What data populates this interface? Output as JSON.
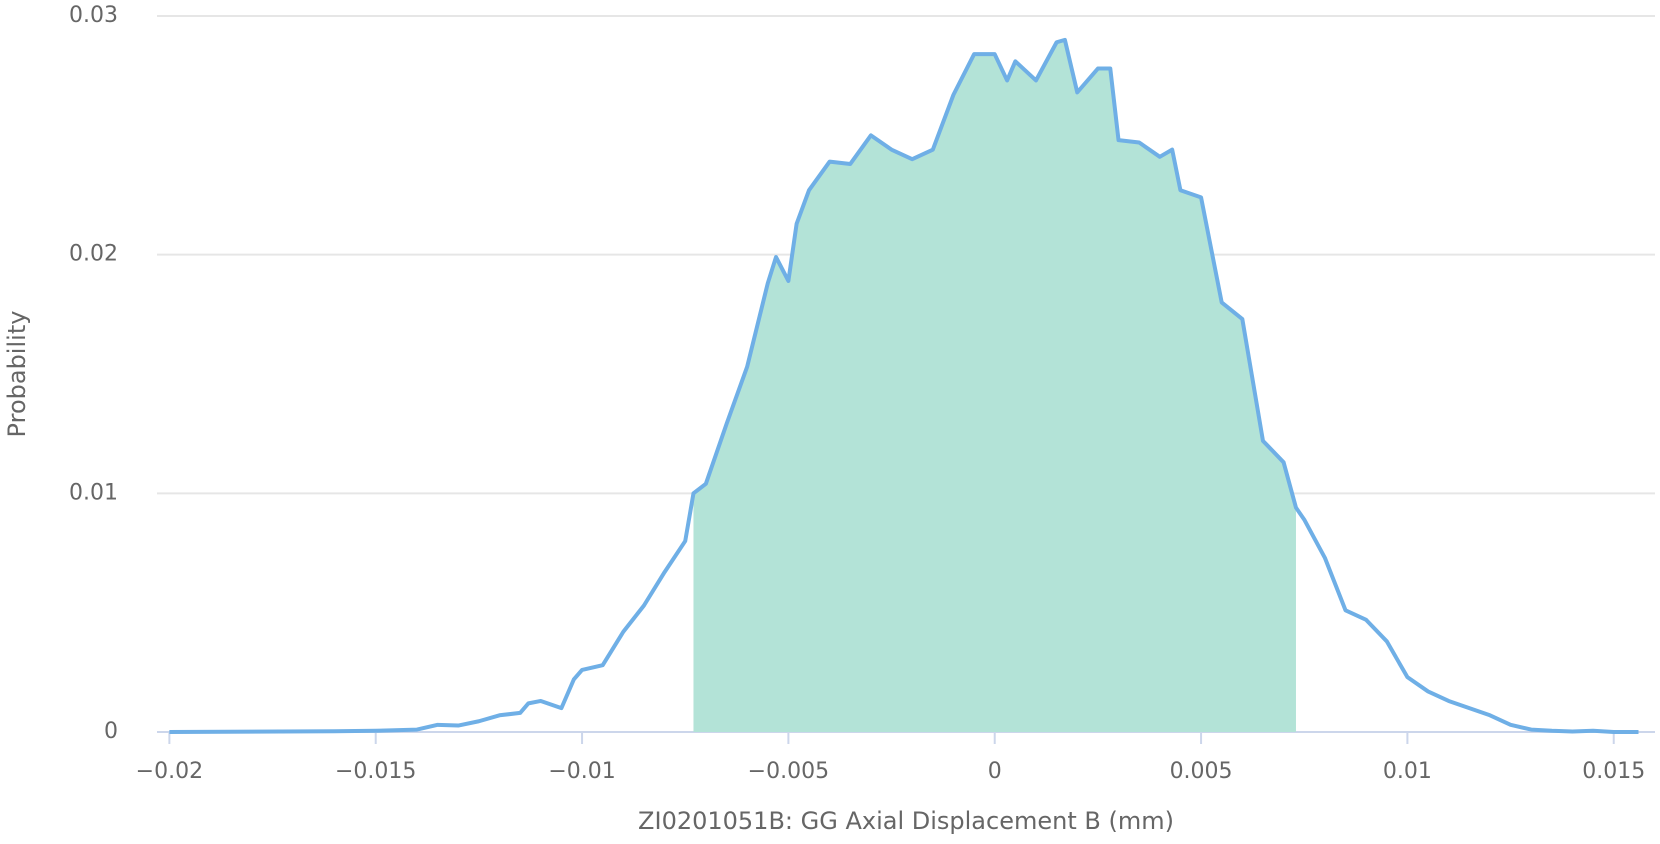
{
  "chart_data": {
    "type": "line",
    "x_label": "ZI0201051B: GG Axial Displacement B (mm)",
    "y_label": "Probability",
    "x": [
      -0.02,
      -0.016,
      -0.015,
      -0.014,
      -0.0135,
      -0.013,
      -0.0125,
      -0.012,
      -0.0115,
      -0.0113,
      -0.011,
      -0.0105,
      -0.0102,
      -0.01,
      -0.0095,
      -0.009,
      -0.0085,
      -0.008,
      -0.0075,
      -0.0073,
      -0.007,
      -0.0065,
      -0.006,
      -0.0055,
      -0.0053,
      -0.005,
      -0.0048,
      -0.0045,
      -0.004,
      -0.0035,
      -0.003,
      -0.0025,
      -0.002,
      -0.0015,
      -0.001,
      -0.0005,
      0,
      0.0003,
      0.0005,
      0.001,
      0.0015,
      0.0017,
      0.002,
      0.0025,
      0.0028,
      0.003,
      0.0035,
      0.004,
      0.0043,
      0.0045,
      0.005,
      0.0055,
      0.006,
      0.0065,
      0.007,
      0.0073,
      0.0075,
      0.008,
      0.0085,
      0.009,
      0.0095,
      0.01,
      0.0105,
      0.011,
      0.0115,
      0.012,
      0.0125,
      0.013,
      0.0135,
      0.014,
      0.0145,
      0.015,
      0.0156
    ],
    "series": [
      {
        "color": "#6fafe6",
        "values": [
          0,
          3e-05,
          5e-05,
          0.0001,
          0.0003,
          0.00027,
          0.00045,
          0.0007,
          0.0008,
          0.0012,
          0.0013,
          0.001,
          0.0022,
          0.0026,
          0.0028,
          0.0042,
          0.0053,
          0.0067,
          0.008,
          0.01,
          0.0104,
          0.0129,
          0.0153,
          0.0188,
          0.0199,
          0.0189,
          0.0213,
          0.0227,
          0.0239,
          0.0238,
          0.025,
          0.0244,
          0.024,
          0.0244,
          0.0267,
          0.0284,
          0.0284,
          0.0273,
          0.0281,
          0.0273,
          0.0289,
          0.029,
          0.0268,
          0.0278,
          0.0278,
          0.0248,
          0.0247,
          0.0241,
          0.0244,
          0.0227,
          0.0224,
          0.018,
          0.0173,
          0.0122,
          0.0113,
          0.0094,
          0.0089,
          0.0073,
          0.0051,
          0.0047,
          0.0038,
          0.0023,
          0.0017,
          0.0013,
          0.001,
          0.0007,
          0.0003,
          0.0001,
          5e-05,
          2e-05,
          5e-05,
          0,
          0
        ]
      }
    ],
    "highlight": {
      "from": -0.0073,
      "to": 0.0073,
      "color": "#b3e3d7"
    },
    "xlim": [
      -0.0203,
      0.016
    ],
    "xticks": [
      {
        "value": -0.02,
        "label": "−0.02"
      },
      {
        "value": -0.015,
        "label": "−0.015"
      },
      {
        "value": -0.01,
        "label": "−0.01"
      },
      {
        "value": -0.005,
        "label": "−0.005"
      },
      0,
      0.005,
      0.01,
      0.015
    ],
    "ylim": [
      0,
      0.03
    ],
    "yticks": [
      0,
      0.01,
      0.02,
      0.03
    ],
    "grid": true
  }
}
